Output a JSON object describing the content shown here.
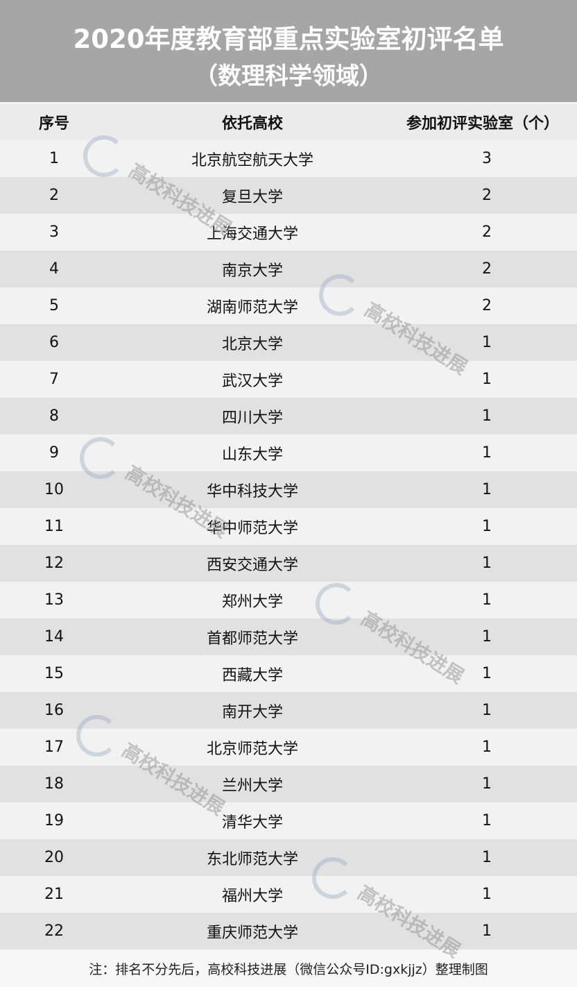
{
  "title": {
    "line1": "2020年度教育部重点实验室初评名单",
    "line2": "（数理科学领域）"
  },
  "columns": [
    "序号",
    "依托高校",
    "参加初评实验室（个）"
  ],
  "rows": [
    [
      "1",
      "北京航空航天大学",
      "3"
    ],
    [
      "2",
      "复旦大学",
      "2"
    ],
    [
      "3",
      "上海交通大学",
      "2"
    ],
    [
      "4",
      "南京大学",
      "2"
    ],
    [
      "5",
      "湖南师范大学",
      "2"
    ],
    [
      "6",
      "北京大学",
      "1"
    ],
    [
      "7",
      "武汉大学",
      "1"
    ],
    [
      "8",
      "四川大学",
      "1"
    ],
    [
      "9",
      "山东大学",
      "1"
    ],
    [
      "10",
      "华中科技大学",
      "1"
    ],
    [
      "11",
      "华中师范大学",
      "1"
    ],
    [
      "12",
      "西安交通大学",
      "1"
    ],
    [
      "13",
      "郑州大学",
      "1"
    ],
    [
      "14",
      "首都师范大学",
      "1"
    ],
    [
      "15",
      "西藏大学",
      "1"
    ],
    [
      "16",
      "南开大学",
      "1"
    ],
    [
      "17",
      "北京师范大学",
      "1"
    ],
    [
      "18",
      "兰州大学",
      "1"
    ],
    [
      "19",
      "清华大学",
      "1"
    ],
    [
      "20",
      "东北师范大学",
      "1"
    ],
    [
      "21",
      "福州大学",
      "1"
    ],
    [
      "22",
      "重庆师范大学",
      "1"
    ]
  ],
  "footer": "注：排名不分先后，高校科技进展（微信公众号ID:gxkjjz）整理制图",
  "watermark": "高校科技进展",
  "colors": {
    "title_bg": "#a6a6a6",
    "header_bg": "#ebebeb",
    "row_light": "#f2f2f2",
    "row_dark": "#e1e1e1"
  }
}
